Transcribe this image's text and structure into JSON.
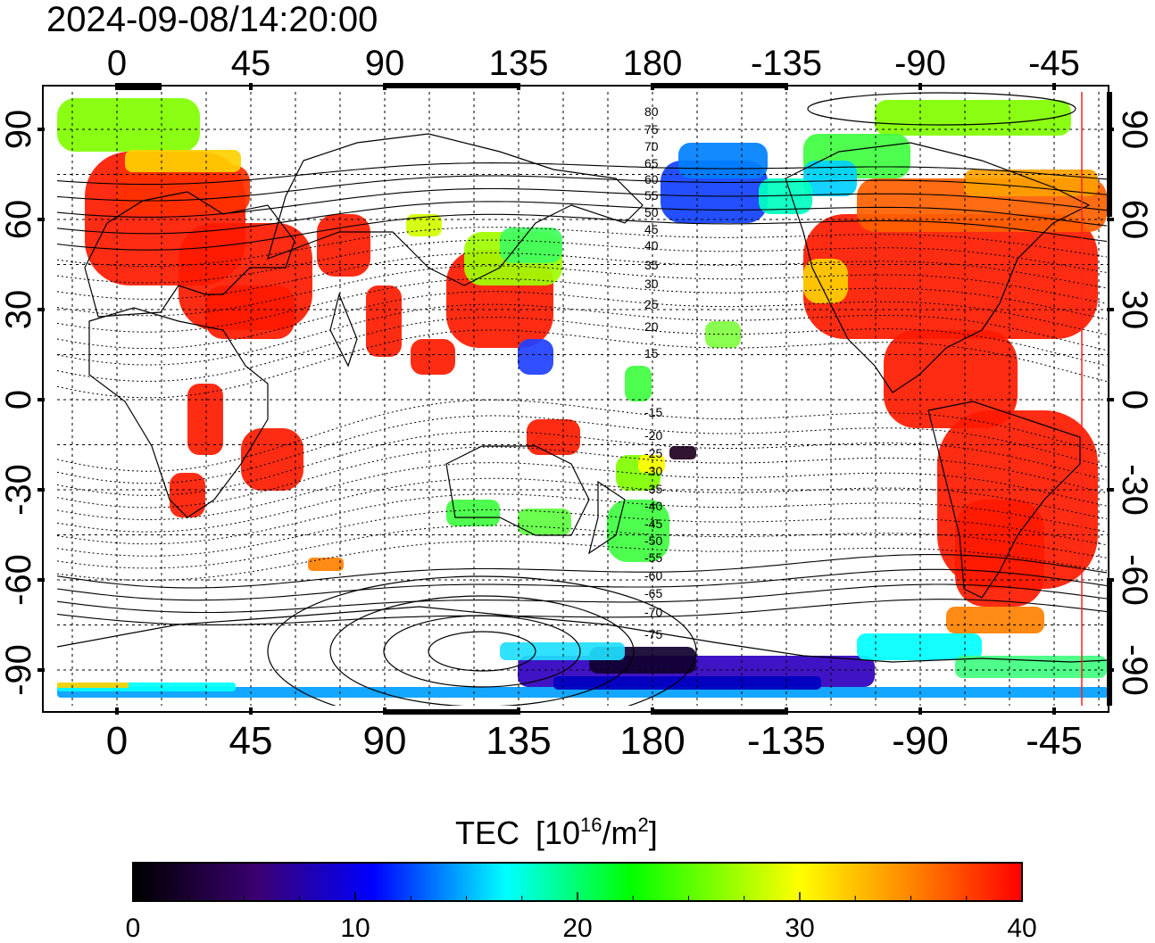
{
  "timestamp": "2024-09-08/14:20:00",
  "map": {
    "x_ticks": [
      "0",
      "45",
      "90",
      "135",
      "180",
      "-135",
      "-90",
      "-45"
    ],
    "y_ticks": [
      "90",
      "60",
      "30",
      "0",
      "-30",
      "-60",
      "-90"
    ],
    "mag_lat_labels_north": [
      "80",
      "75",
      "70",
      "65",
      "60",
      "55",
      "50",
      "45",
      "40",
      "35",
      "30",
      "25",
      "20",
      "15"
    ],
    "mag_lat_labels_south": [
      "-15",
      "-20",
      "-25",
      "-30",
      "-35",
      "-40",
      "-45",
      "-50",
      "-55",
      "-60",
      "-65",
      "-70",
      "-75"
    ],
    "terminator_color": "#ff2020"
  },
  "colorbar": {
    "title": "TEC",
    "unit_base": "[10",
    "unit_exp": "16",
    "unit_mid": "/m",
    "unit_sq": "2",
    "unit_end": "]",
    "ticks": [
      "0",
      "10",
      "20",
      "30",
      "40"
    ],
    "range": [
      0,
      40
    ],
    "stops": [
      "#000000",
      "#3a0070",
      "#0000ff",
      "#00ffff",
      "#00ff00",
      "#ffff00",
      "#ff0000"
    ]
  }
}
